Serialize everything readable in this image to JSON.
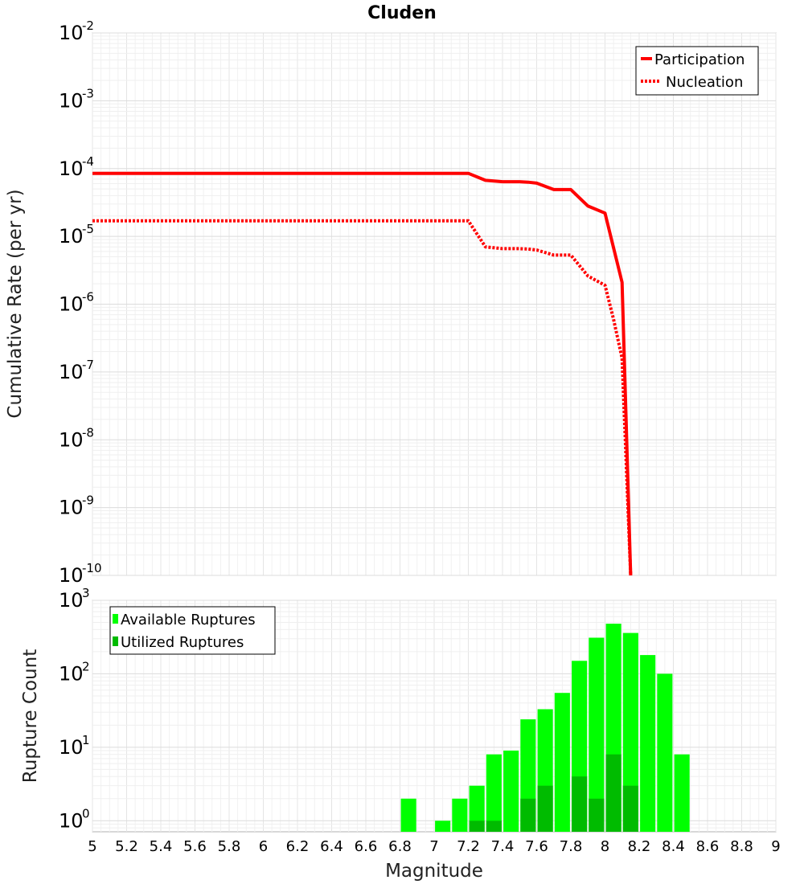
{
  "page_title": "Cluden",
  "chart_data": [
    {
      "type": "line",
      "title": "Cluden",
      "xlabel": "Magnitude",
      "ylabel": "Cumulative Rate (per yr)",
      "yscale": "log",
      "xlim": [
        5,
        9
      ],
      "ylim_exp": [
        -10,
        -2
      ],
      "ytick_base": "10",
      "ytick_exponents": [
        "-2",
        "-3",
        "-4",
        "-5",
        "-6",
        "-7",
        "-8",
        "-9",
        "-10"
      ],
      "legend_position": "top-right",
      "series": [
        {
          "name": "Participation",
          "color": "#ff0000",
          "style": "solid",
          "x": [
            5.0,
            7.2,
            7.3,
            7.4,
            7.5,
            7.55,
            7.6,
            7.7,
            7.8,
            7.9,
            8.0,
            8.1,
            8.15
          ],
          "y": [
            8.5e-05,
            8.5e-05,
            6.7e-05,
            6.4e-05,
            6.4e-05,
            6.3e-05,
            6.1e-05,
            4.9e-05,
            4.9e-05,
            2.8e-05,
            2.2e-05,
            2.1e-06,
            1e-10
          ]
        },
        {
          "name": "Nucleation",
          "color": "#ff0000",
          "style": "dotted",
          "x": [
            5.0,
            7.2,
            7.3,
            7.4,
            7.5,
            7.55,
            7.6,
            7.7,
            7.8,
            7.9,
            8.0,
            8.05,
            8.1,
            8.15
          ],
          "y": [
            1.7e-05,
            1.7e-05,
            7e-06,
            6.6e-06,
            6.6e-06,
            6.5e-06,
            6.3e-06,
            5.3e-06,
            5.3e-06,
            2.6e-06,
            1.9e-06,
            6e-07,
            1.6e-07,
            1e-10
          ]
        }
      ]
    },
    {
      "type": "bar",
      "xlabel": "Magnitude",
      "ylabel": "Rupture Count",
      "yscale": "log",
      "ylim_exp": [
        -0.15,
        3
      ],
      "ytick_base": "10",
      "ytick_exponents": [
        "3",
        "2",
        "1",
        "0"
      ],
      "bar_width": 0.09,
      "xticks": [
        "5",
        "5.2",
        "5.4",
        "5.6",
        "5.8",
        "6",
        "6.2",
        "6.4",
        "6.6",
        "6.8",
        "7",
        "7.2",
        "7.4",
        "7.6",
        "7.8",
        "8",
        "8.2",
        "8.4",
        "8.6",
        "8.8",
        "9"
      ],
      "legend_position": "top-left",
      "series": [
        {
          "name": "Available Ruptures",
          "color": "#00ff00",
          "x": [
            6.85,
            7.05,
            7.15,
            7.25,
            7.35,
            7.45,
            7.55,
            7.65,
            7.75,
            7.85,
            7.95,
            8.05,
            8.15,
            8.25,
            8.35,
            8.45
          ],
          "values": [
            2,
            1,
            2,
            3,
            8,
            9,
            24,
            33,
            55,
            150,
            310,
            480,
            360,
            180,
            100,
            8
          ]
        },
        {
          "name": "Utilized Ruptures",
          "color": "#00bb00",
          "x": [
            7.25,
            7.35,
            7.55,
            7.65,
            7.85,
            7.95,
            8.05,
            8.15
          ],
          "values": [
            1,
            1,
            2,
            3,
            4,
            2,
            8,
            3
          ]
        }
      ]
    }
  ]
}
